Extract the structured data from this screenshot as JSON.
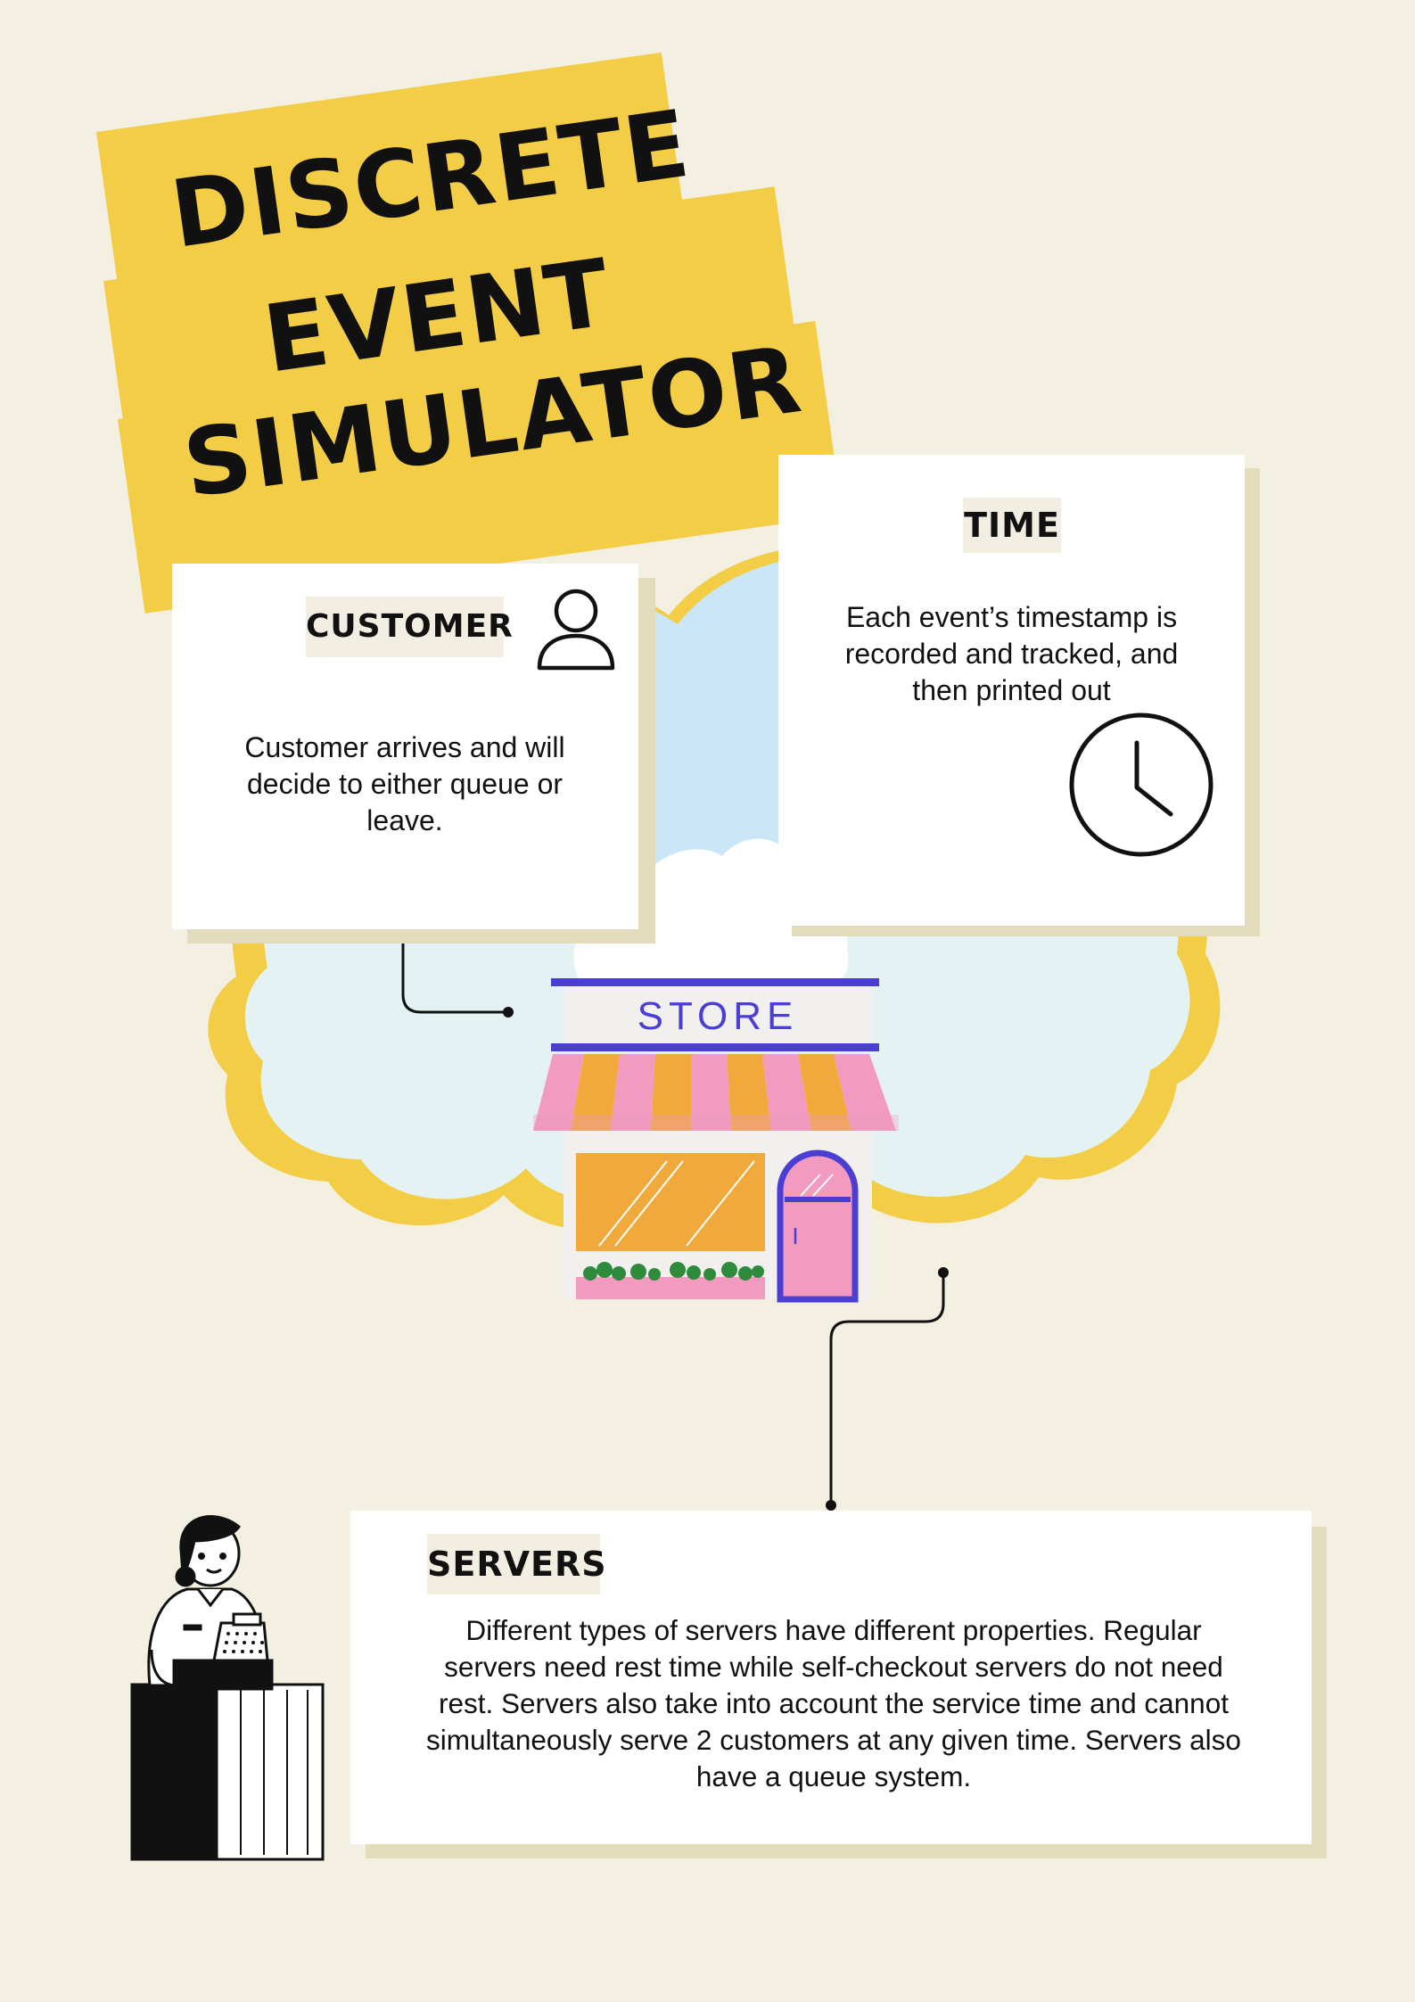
{
  "title": {
    "line1": "DISCRETE",
    "line2": "EVENT",
    "line3": "SIMULATOR"
  },
  "customer": {
    "label": "CUSTOMER",
    "text": "Customer arrives and will decide to either queue or leave.",
    "icon": "user-icon"
  },
  "time": {
    "label": "TIME",
    "text": "Each event’s timestamp is recorded and tracked, and then printed out",
    "icon": "clock-icon"
  },
  "store": {
    "sign": "STORE"
  },
  "servers": {
    "label": "SERVERS",
    "text": "Different types of servers have different properties. Regular servers need rest time while self-checkout servers do not need rest. Servers also take into account the service time and cannot simultaneously serve 2 customers at any given time. Servers also have a queue system."
  },
  "colors": {
    "background": "#f3efe1",
    "title_band": "#f4cd47",
    "sky": "#cbe7f7",
    "hill_dark": "#86a300",
    "hill_light": "#c8e085",
    "sign_accent": "#4b3fd3",
    "awning_pink": "#f29ac0",
    "awning_orange": "#f2a93b"
  }
}
